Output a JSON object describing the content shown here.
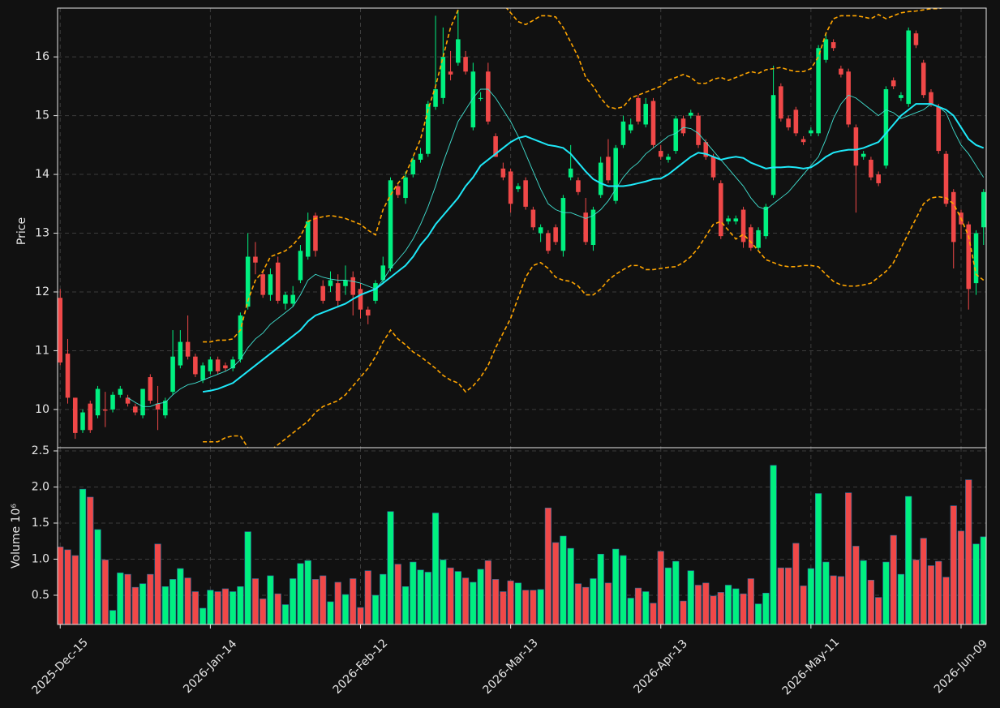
{
  "chart_data": {
    "type": "candlestick",
    "ylabel": "Price",
    "ylim": [
      9.35,
      16.83
    ],
    "yticks": [
      10,
      11,
      12,
      13,
      14,
      15,
      16
    ],
    "grid": true,
    "up_color": "#00f080",
    "down_color": "#f04848",
    "categories": [
      "2025-Dec-15",
      null,
      null,
      null,
      null,
      null,
      null,
      null,
      null,
      null,
      null,
      null,
      null,
      null,
      null,
      null,
      null,
      null,
      null,
      null,
      "2026-Jan-14",
      null,
      null,
      null,
      null,
      null,
      null,
      null,
      null,
      null,
      null,
      null,
      null,
      null,
      null,
      null,
      null,
      null,
      null,
      null,
      "2026-Feb-12",
      null,
      null,
      null,
      null,
      null,
      null,
      null,
      null,
      null,
      null,
      null,
      null,
      null,
      null,
      null,
      null,
      null,
      null,
      null,
      "2026-Mar-13",
      null,
      null,
      null,
      null,
      null,
      null,
      null,
      null,
      null,
      null,
      null,
      null,
      null,
      null,
      null,
      null,
      null,
      null,
      null,
      "2026-Apr-13",
      null,
      null,
      null,
      null,
      null,
      null,
      null,
      null,
      null,
      null,
      null,
      null,
      null,
      null,
      null,
      null,
      null,
      null,
      null,
      "2026-May-11",
      null,
      null,
      null,
      null,
      null,
      null,
      null,
      null,
      null,
      null,
      null,
      null,
      null,
      null,
      null,
      null,
      null,
      null,
      null,
      "2026-Jun-09",
      null,
      null,
      null
    ],
    "open": [
      11.9,
      10.95,
      10.2,
      9.65,
      10.1,
      9.9,
      10.0,
      10.0,
      10.25,
      10.2,
      10.05,
      9.9,
      10.55,
      10.1,
      9.9,
      10.3,
      10.75,
      11.15,
      10.9,
      10.5,
      10.65,
      10.85,
      10.75,
      10.7,
      10.85,
      11.75,
      12.6,
      12.3,
      11.95,
      12.5,
      11.8,
      11.8,
      12.2,
      12.6,
      13.3,
      12.1,
      12.1,
      12.15,
      12.1,
      12.25,
      12.05,
      11.7,
      11.85,
      12.2,
      12.4,
      13.8,
      13.6,
      14.0,
      14.25,
      14.35,
      15.15,
      15.3,
      15.75,
      15.9,
      16.0,
      14.8,
      15.3,
      15.75,
      14.65,
      14.1,
      14.05,
      13.75,
      13.9,
      13.4,
      13.0,
      13.0,
      13.1,
      12.7,
      13.95,
      13.9,
      13.35,
      12.8,
      13.65,
      14.3,
      13.55,
      14.5,
      14.75,
      15.3,
      14.85,
      15.25,
      14.4,
      14.25,
      14.4,
      14.95,
      15.0,
      15.0,
      14.55,
      14.3,
      13.85,
      13.2,
      13.2,
      13.4,
      13.1,
      12.75,
      12.95,
      13.65,
      15.5,
      14.95,
      15.1,
      14.6,
      14.7,
      14.7,
      15.95,
      16.25,
      15.8,
      15.75,
      14.8,
      14.3,
      14.25,
      14.0,
      14.15,
      15.6,
      15.3,
      15.2,
      16.4,
      15.9,
      15.4,
      15.15,
      14.35,
      13.7,
      13.35,
      13.15,
      12.15,
      13.1
    ],
    "high": [
      12.05,
      11.2,
      10.2,
      10.0,
      10.15,
      10.4,
      10.3,
      10.3,
      10.4,
      10.25,
      10.1,
      10.35,
      10.6,
      10.4,
      10.2,
      11.35,
      11.35,
      11.6,
      10.95,
      10.8,
      10.9,
      10.9,
      10.8,
      10.9,
      11.65,
      13.0,
      12.85,
      12.35,
      12.4,
      12.6,
      12.0,
      12.1,
      12.8,
      13.35,
      13.35,
      12.2,
      12.35,
      12.3,
      12.45,
      12.35,
      12.15,
      11.75,
      12.2,
      12.6,
      13.95,
      13.85,
      14.05,
      14.3,
      14.45,
      15.25,
      16.7,
      16.5,
      16.1,
      16.8,
      16.1,
      15.9,
      15.4,
      15.9,
      14.7,
      14.2,
      14.1,
      13.85,
      13.95,
      13.45,
      13.15,
      13.05,
      13.15,
      13.65,
      14.5,
      13.95,
      13.6,
      13.45,
      14.3,
      14.6,
      14.5,
      15.0,
      14.95,
      15.35,
      15.3,
      15.3,
      14.5,
      14.35,
      15.0,
      15.0,
      15.1,
      15.05,
      14.6,
      14.35,
      13.9,
      13.3,
      13.3,
      13.45,
      13.15,
      13.1,
      13.5,
      15.85,
      15.55,
      15.0,
      15.15,
      14.65,
      14.8,
      16.2,
      16.4,
      16.3,
      15.85,
      15.8,
      14.85,
      14.4,
      14.3,
      14.05,
      15.5,
      15.65,
      15.4,
      16.5,
      16.45,
      15.95,
      15.45,
      15.2,
      14.4,
      13.75,
      13.4,
      13.2,
      13.05,
      13.75
    ],
    "low": [
      10.75,
      10.1,
      9.5,
      9.6,
      9.6,
      9.85,
      9.7,
      9.95,
      10.2,
      10.05,
      9.9,
      9.85,
      10.1,
      9.65,
      9.85,
      10.25,
      10.7,
      10.85,
      10.55,
      10.45,
      10.6,
      10.6,
      10.65,
      10.65,
      10.8,
      11.7,
      12.3,
      11.9,
      11.85,
      11.8,
      11.7,
      11.75,
      12.15,
      12.55,
      12.6,
      11.8,
      12.0,
      11.75,
      11.95,
      11.6,
      11.55,
      11.45,
      11.8,
      12.15,
      12.35,
      13.6,
      13.5,
      13.95,
      14.2,
      14.3,
      15.1,
      15.2,
      15.6,
      15.85,
      15.7,
      14.75,
      15.25,
      14.85,
      14.3,
      13.9,
      13.35,
      13.7,
      13.4,
      13.05,
      12.85,
      12.65,
      12.8,
      12.6,
      13.9,
      13.65,
      12.8,
      12.7,
      13.6,
      13.85,
      13.5,
      14.45,
      14.7,
      14.85,
      14.8,
      14.45,
      14.25,
      14.2,
      14.35,
      14.65,
      14.95,
      14.45,
      14.25,
      13.9,
      12.9,
      13.15,
      13.15,
      12.75,
      12.7,
      12.7,
      12.9,
      13.6,
      14.9,
      14.75,
      14.65,
      14.5,
      14.65,
      14.65,
      15.9,
      16.1,
      15.65,
      14.8,
      13.35,
      14.25,
      13.9,
      13.8,
      14.1,
      15.45,
      15.25,
      15.15,
      16.15,
      15.3,
      15.15,
      14.35,
      13.45,
      12.4,
      12.9,
      11.7,
      11.95,
      12.8
    ],
    "close": [
      10.8,
      10.2,
      9.6,
      9.95,
      9.65,
      10.35,
      9.98,
      10.25,
      10.35,
      10.1,
      9.95,
      10.35,
      10.15,
      10.0,
      10.15,
      10.9,
      11.15,
      10.9,
      10.6,
      10.75,
      10.85,
      10.65,
      10.7,
      10.85,
      11.6,
      12.6,
      12.5,
      11.95,
      12.3,
      11.85,
      11.95,
      11.95,
      12.7,
      13.2,
      12.7,
      11.85,
      12.2,
      11.85,
      12.2,
      11.95,
      11.7,
      11.6,
      12.15,
      12.45,
      13.9,
      13.65,
      13.95,
      14.25,
      14.35,
      15.2,
      15.45,
      16.0,
      15.7,
      16.3,
      15.75,
      15.75,
      15.3,
      14.9,
      14.3,
      13.95,
      13.5,
      13.8,
      13.45,
      13.1,
      13.1,
      12.7,
      12.85,
      13.6,
      14.1,
      13.7,
      12.85,
      13.4,
      14.2,
      13.9,
      14.45,
      14.9,
      14.85,
      14.9,
      15.2,
      14.5,
      14.3,
      14.3,
      14.95,
      14.7,
      15.05,
      14.5,
      14.3,
      13.95,
      12.95,
      13.25,
      13.25,
      12.85,
      12.75,
      13.05,
      13.45,
      15.35,
      14.95,
      14.8,
      14.7,
      14.55,
      14.75,
      16.15,
      16.3,
      16.15,
      15.7,
      14.85,
      14.15,
      14.35,
      13.95,
      13.85,
      15.45,
      15.5,
      15.35,
      16.45,
      16.2,
      15.35,
      15.2,
      14.4,
      13.5,
      12.85,
      13.15,
      12.05,
      13.0,
      13.7
    ],
    "overlays": [
      {
        "color": "#40e0d0",
        "width": 0.9,
        "dashed": false,
        "values": [
          null,
          null,
          null,
          null,
          null,
          null,
          null,
          null,
          null,
          10.2,
          10.12,
          10.05,
          10.05,
          10.1,
          10.12,
          10.25,
          10.35,
          10.42,
          10.45,
          10.5,
          10.55,
          10.6,
          10.65,
          10.72,
          10.85,
          11.05,
          11.2,
          11.3,
          11.45,
          11.55,
          11.65,
          11.75,
          11.95,
          12.2,
          12.3,
          12.25,
          12.22,
          12.2,
          12.2,
          12.18,
          12.15,
          12.1,
          12.05,
          12.2,
          12.4,
          12.55,
          12.7,
          12.9,
          13.15,
          13.45,
          13.8,
          14.2,
          14.55,
          14.9,
          15.1,
          15.3,
          15.45,
          15.45,
          15.3,
          15.1,
          14.9,
          14.65,
          14.35,
          14.05,
          13.75,
          13.5,
          13.4,
          13.35,
          13.35,
          13.3,
          13.25,
          13.3,
          13.4,
          13.55,
          13.75,
          13.95,
          14.1,
          14.2,
          14.35,
          14.45,
          14.55,
          14.65,
          14.7,
          14.8,
          14.78,
          14.7,
          14.55,
          14.4,
          14.25,
          14.1,
          13.95,
          13.8,
          13.6,
          13.45,
          13.4,
          13.5,
          13.6,
          13.7,
          13.85,
          14.0,
          14.15,
          14.3,
          14.6,
          14.95,
          15.2,
          15.35,
          15.3,
          15.2,
          15.1,
          15.0,
          15.1,
          15.05,
          14.95,
          15.0,
          15.05,
          15.1,
          15.2,
          15.15,
          15.05,
          14.75,
          14.5,
          14.35,
          14.15,
          13.95
        ]
      },
      {
        "color": "#1ee8f8",
        "width": 2,
        "dashed": false,
        "values": [
          null,
          null,
          null,
          null,
          null,
          null,
          null,
          null,
          null,
          null,
          null,
          null,
          null,
          null,
          null,
          null,
          null,
          null,
          null,
          10.3,
          10.32,
          10.35,
          10.4,
          10.45,
          10.55,
          10.65,
          10.75,
          10.85,
          10.95,
          11.05,
          11.15,
          11.25,
          11.35,
          11.5,
          11.6,
          11.65,
          11.7,
          11.75,
          11.8,
          11.88,
          11.95,
          12.0,
          12.05,
          12.15,
          12.25,
          12.35,
          12.45,
          12.6,
          12.8,
          12.95,
          13.15,
          13.3,
          13.45,
          13.6,
          13.8,
          13.95,
          14.15,
          14.25,
          14.35,
          14.45,
          14.55,
          14.62,
          14.65,
          14.6,
          14.55,
          14.5,
          14.48,
          14.45,
          14.35,
          14.2,
          14.05,
          13.92,
          13.85,
          13.8,
          13.8,
          13.8,
          13.82,
          13.85,
          13.88,
          13.92,
          13.93,
          14.0,
          14.1,
          14.2,
          14.3,
          14.37,
          14.35,
          14.3,
          14.25,
          14.28,
          14.3,
          14.28,
          14.2,
          14.15,
          14.1,
          14.12,
          14.12,
          14.13,
          14.12,
          14.1,
          14.12,
          14.2,
          14.3,
          14.37,
          14.4,
          14.42,
          14.42,
          14.45,
          14.5,
          14.55,
          14.7,
          14.85,
          15.0,
          15.1,
          15.2,
          15.2,
          15.2,
          15.15,
          15.1,
          15.0,
          14.8,
          14.6,
          14.5,
          14.45
        ]
      },
      {
        "color": "#ffa500",
        "width": 1.6,
        "dashed": true,
        "values": [
          null,
          null,
          null,
          null,
          null,
          null,
          null,
          null,
          null,
          null,
          null,
          null,
          null,
          null,
          null,
          null,
          null,
          null,
          null,
          11.15,
          11.15,
          11.18,
          11.18,
          11.2,
          11.35,
          11.85,
          12.2,
          12.35,
          12.6,
          12.65,
          12.7,
          12.8,
          12.95,
          13.2,
          13.25,
          13.28,
          13.3,
          13.28,
          13.25,
          13.2,
          13.15,
          13.05,
          12.97,
          13.4,
          13.65,
          13.85,
          14.0,
          14.3,
          14.6,
          15.1,
          15.5,
          16.0,
          16.5,
          16.8,
          17.0,
          17.2,
          17.3,
          17.2,
          17.05,
          16.9,
          16.75,
          16.6,
          16.55,
          16.62,
          16.7,
          16.7,
          16.68,
          16.5,
          16.25,
          16.0,
          15.65,
          15.5,
          15.3,
          15.15,
          15.12,
          15.15,
          15.3,
          15.35,
          15.4,
          15.45,
          15.5,
          15.6,
          15.65,
          15.7,
          15.65,
          15.55,
          15.55,
          15.62,
          15.65,
          15.6,
          15.65,
          15.7,
          15.75,
          15.72,
          15.78,
          15.8,
          15.82,
          15.78,
          15.75,
          15.75,
          15.8,
          16.0,
          16.4,
          16.65,
          16.7,
          16.7,
          16.7,
          16.68,
          16.65,
          16.72,
          16.65,
          16.7,
          16.75,
          16.77,
          16.78,
          16.8,
          16.82,
          16.82,
          16.85,
          16.9,
          16.95,
          16.95,
          17.0,
          16.9
        ]
      },
      {
        "color": "#ffa500",
        "width": 1.6,
        "dashed": true,
        "values": [
          null,
          null,
          null,
          null,
          null,
          null,
          null,
          null,
          null,
          null,
          null,
          null,
          null,
          null,
          null,
          null,
          null,
          null,
          null,
          9.45,
          9.45,
          9.45,
          9.52,
          9.55,
          9.55,
          9.35,
          9.3,
          9.3,
          9.3,
          9.4,
          9.5,
          9.6,
          9.7,
          9.8,
          9.95,
          10.05,
          10.1,
          10.15,
          10.25,
          10.4,
          10.55,
          10.7,
          10.9,
          11.15,
          11.35,
          11.2,
          11.1,
          10.98,
          10.9,
          10.8,
          10.7,
          10.58,
          10.5,
          10.45,
          10.3,
          10.4,
          10.55,
          10.75,
          11.05,
          11.3,
          11.55,
          11.9,
          12.25,
          12.45,
          12.5,
          12.4,
          12.25,
          12.2,
          12.18,
          12.1,
          11.95,
          11.95,
          12.05,
          12.2,
          12.3,
          12.38,
          12.45,
          12.45,
          12.38,
          12.38,
          12.4,
          12.42,
          12.43,
          12.5,
          12.6,
          12.75,
          12.95,
          13.15,
          13.2,
          13.05,
          12.9,
          12.98,
          12.85,
          12.7,
          12.55,
          12.5,
          12.45,
          12.43,
          12.43,
          12.45,
          12.45,
          12.43,
          12.3,
          12.18,
          12.12,
          12.1,
          12.1,
          12.12,
          12.15,
          12.25,
          12.35,
          12.5,
          12.75,
          13.0,
          13.25,
          13.5,
          13.6,
          13.62,
          13.6,
          13.5,
          13.25,
          12.95,
          12.3,
          12.2
        ]
      }
    ],
    "volume": {
      "ylabel": "Volume  10⁶",
      "ylim": [
        0.095,
        2.545
      ],
      "yticks": [
        0.5,
        {
          "value": 1,
          "label": "1.0"
        },
        1.5,
        {
          "value": 2,
          "label": "2.0"
        },
        2.5
      ],
      "values": [
        1.17,
        1.13,
        1.05,
        1.97,
        1.86,
        1.41,
        0.99,
        0.29,
        0.81,
        0.79,
        0.61,
        0.66,
        0.79,
        1.21,
        0.62,
        0.72,
        0.87,
        0.74,
        0.55,
        0.32,
        0.57,
        0.55,
        0.59,
        0.55,
        0.62,
        1.38,
        0.73,
        0.45,
        0.77,
        0.52,
        0.37,
        0.73,
        0.94,
        0.98,
        0.72,
        0.77,
        0.41,
        0.68,
        0.51,
        0.73,
        0.33,
        0.84,
        0.5,
        0.79,
        1.66,
        0.93,
        0.62,
        0.96,
        0.85,
        0.82,
        1.64,
        0.99,
        0.88,
        0.83,
        0.74,
        0.68,
        0.86,
        0.98,
        0.72,
        0.55,
        0.7,
        0.67,
        0.57,
        0.57,
        0.58,
        1.71,
        1.23,
        1.32,
        1.15,
        0.66,
        0.61,
        0.73,
        1.07,
        0.67,
        1.14,
        1.05,
        0.46,
        0.6,
        0.55,
        0.39,
        1.11,
        0.88,
        0.97,
        0.42,
        0.84,
        0.64,
        0.67,
        0.49,
        0.54,
        0.64,
        0.59,
        0.52,
        0.73,
        0.38,
        0.53,
        2.3,
        0.88,
        0.88,
        1.22,
        0.63,
        0.87,
        1.91,
        0.96,
        0.77,
        0.76,
        1.92,
        1.18,
        0.98,
        0.71,
        0.47,
        0.96,
        1.33,
        0.79,
        1.87,
        0.99,
        1.29,
        0.91,
        0.97,
        0.75,
        1.74,
        1.39,
        2.1,
        1.21,
        1.31
      ]
    }
  }
}
